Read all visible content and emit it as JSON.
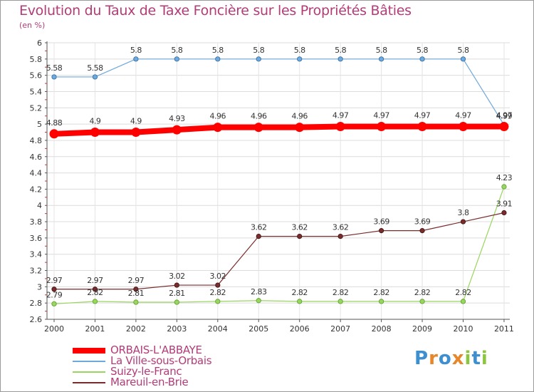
{
  "chart_data": {
    "type": "line",
    "title": "Evolution du Taux de Taxe Foncière sur les Propriétés Bâties",
    "subtitle": "(en %)",
    "x": [
      "2000",
      "2001",
      "2002",
      "2003",
      "2004",
      "2005",
      "2006",
      "2007",
      "2008",
      "2009",
      "2010",
      "2011"
    ],
    "y_ticks": [
      "2.6",
      "2.8",
      "3",
      "3.2",
      "3.4",
      "3.6",
      "3.8",
      "4",
      "4.2",
      "4.4",
      "4.6",
      "4.8",
      "5",
      "5.2",
      "5.4",
      "5.6",
      "5.8",
      "6"
    ],
    "ylim": [
      2.6,
      6
    ],
    "grid": true,
    "legend_position": "bottom-left",
    "series": [
      {
        "name": "ORBAIS-L'ABBAYE",
        "color": "#ff0000",
        "values": [
          4.88,
          4.9,
          4.9,
          4.93,
          4.96,
          4.96,
          4.96,
          4.97,
          4.97,
          4.97,
          4.97,
          4.97
        ],
        "labels": [
          "4.88",
          "4.9",
          "4.9",
          "4.93",
          "4.96",
          "4.96",
          "4.96",
          "4.97",
          "4.97",
          "4.97",
          "4.97",
          "4.97"
        ]
      },
      {
        "name": "La Ville-sous-Orbais",
        "color": "#6fa8dc",
        "values": [
          5.58,
          5.58,
          5.8,
          5.8,
          5.8,
          5.8,
          5.8,
          5.8,
          5.8,
          5.8,
          5.8,
          4.99
        ],
        "labels": [
          "5.58",
          "5.58",
          "5.8",
          "5.8",
          "5.8",
          "5.8",
          "5.8",
          "5.8",
          "5.8",
          "5.8",
          "5.8",
          "4.99"
        ]
      },
      {
        "name": "Suizy-le-Franc",
        "color": "#99d65f",
        "values": [
          2.79,
          2.82,
          2.81,
          2.81,
          2.82,
          2.83,
          2.82,
          2.82,
          2.82,
          2.82,
          2.82,
          4.23
        ],
        "labels": [
          "2.79",
          "2.82",
          "2.81",
          "2.81",
          "2.82",
          "2.83",
          "2.82",
          "2.82",
          "2.82",
          "2.82",
          "2.82",
          "4.23"
        ]
      },
      {
        "name": "Mareuil-en-Brie",
        "color": "#7a2c2c",
        "values": [
          2.97,
          2.97,
          2.97,
          3.02,
          3.02,
          3.62,
          3.62,
          3.62,
          3.69,
          3.69,
          3.8,
          3.91
        ],
        "labels": [
          "2.97",
          "2.97",
          "2.97",
          "3.02",
          "3.02",
          "3.62",
          "3.62",
          "3.62",
          "3.69",
          "3.69",
          "3.8",
          "3.91"
        ]
      }
    ]
  },
  "logo": {
    "text": [
      "P",
      "r",
      "o",
      "x",
      "i",
      "t",
      "i"
    ],
    "colors": [
      "#3d8fd0",
      "#e8862a",
      "#3d8fd0",
      "#e8862a",
      "#8cc63f",
      "#3d8fd0",
      "#8cc63f"
    ]
  }
}
